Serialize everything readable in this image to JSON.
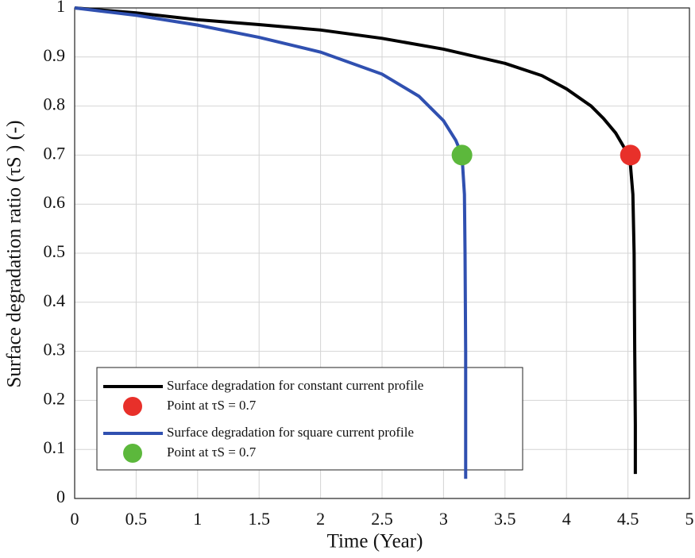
{
  "chart_data": {
    "type": "line",
    "xlabel": "Time (Year)",
    "ylabel": "Surface degradation ratio (τS ) (-)",
    "xlim": [
      0,
      5
    ],
    "xticks": [
      0,
      0.5,
      1,
      1.5,
      2,
      2.5,
      3,
      3.5,
      4,
      4.5,
      5
    ],
    "ylim": [
      0,
      1
    ],
    "yticks": [
      0,
      0.1,
      0.2,
      0.3,
      0.4,
      0.5,
      0.6,
      0.7,
      0.8,
      0.9,
      1
    ],
    "grid": true,
    "legend": "lower left",
    "series": [
      {
        "name": "Surface degradation for constant current profile",
        "type": "line",
        "color": "#000000",
        "x": [
          0,
          0.5,
          1,
          1.5,
          2,
          2.5,
          3,
          3.5,
          3.8,
          4,
          4.2,
          4.3,
          4.4,
          4.47,
          4.52,
          4.54,
          4.55,
          4.555,
          4.56,
          4.56
        ],
        "values": [
          1,
          0.99,
          0.976,
          0.966,
          0.955,
          0.938,
          0.916,
          0.887,
          0.862,
          0.835,
          0.8,
          0.775,
          0.745,
          0.715,
          0.68,
          0.62,
          0.5,
          0.3,
          0.15,
          0.05
        ]
      },
      {
        "name": "Point at τS = 0.7",
        "type": "scatter",
        "color": "#e8302a",
        "x": [
          4.52
        ],
        "values": [
          0.7
        ]
      },
      {
        "name": "Surface degradation for square current profile",
        "type": "line",
        "color": "#3050b0",
        "x": [
          0,
          0.5,
          1,
          1.5,
          2,
          2.5,
          2.8,
          3,
          3.1,
          3.15,
          3.17,
          3.175,
          3.18,
          3.18
        ],
        "values": [
          1,
          0.985,
          0.965,
          0.94,
          0.91,
          0.865,
          0.82,
          0.77,
          0.73,
          0.7,
          0.62,
          0.5,
          0.3,
          0.04
        ]
      },
      {
        "name": "Point at τS = 0.7",
        "type": "scatter",
        "color": "#5cb83c",
        "x": [
          3.15
        ],
        "values": [
          0.7
        ]
      }
    ]
  }
}
